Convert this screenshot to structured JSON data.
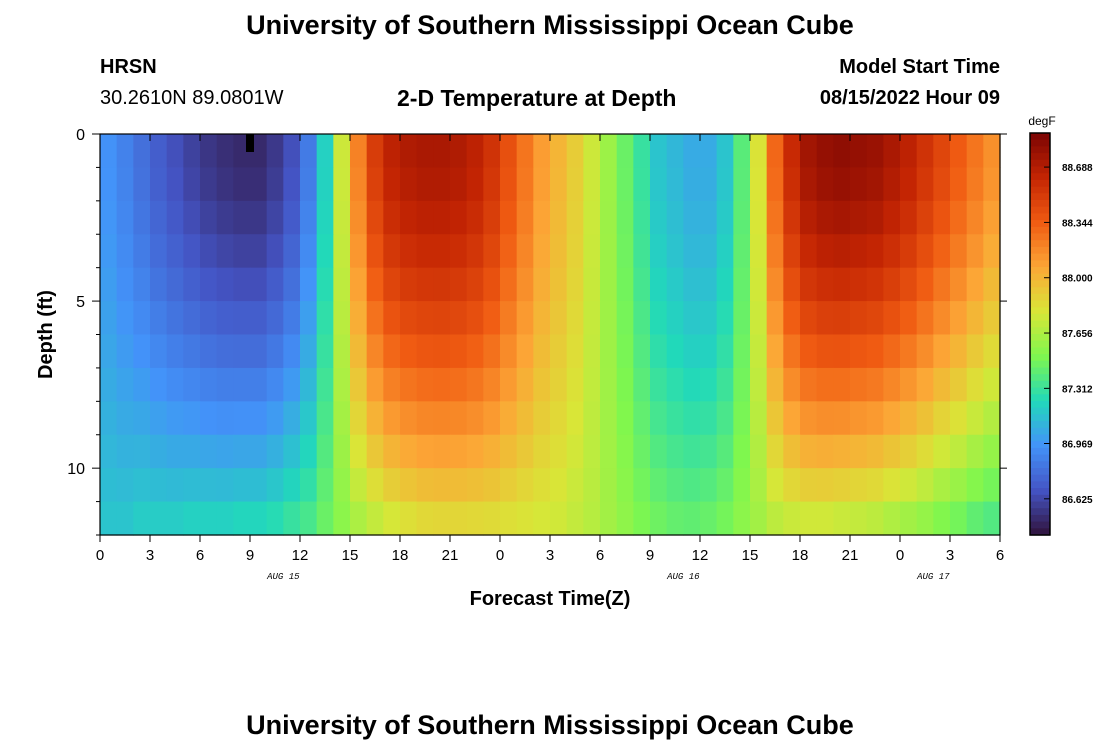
{
  "header": {
    "title": "University of Southern Mississippi Ocean Cube",
    "station": "HRSN",
    "coords": "30.2610N  89.0801W",
    "plot_title": "2-D Temperature at Depth",
    "model_label": "Model Start Time",
    "model_time": "08/15/2022 Hour 09",
    "footer_title": "University of Southern Mississippi Ocean Cube"
  },
  "chart_data": {
    "type": "heatmap",
    "title": "2-D Temperature at Depth",
    "xlabel": "Forecast Time(Z)",
    "ylabel": "Depth (ft)",
    "x_ticks": [
      "0",
      "3",
      "6",
      "9",
      "12",
      "15",
      "18",
      "21",
      "0",
      "3",
      "6",
      "9",
      "12",
      "15",
      "18",
      "21",
      "0",
      "3",
      "6"
    ],
    "date_labels": [
      {
        "hour_index": 11,
        "label": "AUG 15"
      },
      {
        "hour_index": 35,
        "label": "AUG 16"
      },
      {
        "hour_index": 50,
        "label": "AUG 17"
      }
    ],
    "y_ticks": [
      0,
      5,
      10
    ],
    "ylim": [
      12,
      0
    ],
    "hours": 54,
    "colorbar_unit": "degF",
    "colorbar_ticks": [
      "88.688",
      "88.344",
      "88.000",
      "87.656",
      "87.312",
      "86.969",
      "86.625"
    ],
    "colorbar_range": [
      86.4,
      88.9
    ],
    "current_time_marker_hour": 9,
    "depth_levels_ft": [
      0,
      1,
      2,
      3,
      4,
      5,
      6,
      7,
      8,
      9,
      10,
      11
    ],
    "surface_temp_degF": [
      86.95,
      86.88,
      86.8,
      86.72,
      86.66,
      86.6,
      86.55,
      86.52,
      86.5,
      86.5,
      86.56,
      86.66,
      86.85,
      87.2,
      87.75,
      88.2,
      88.5,
      88.65,
      88.7,
      88.72,
      88.72,
      88.7,
      88.65,
      88.55,
      88.4,
      88.25,
      88.1,
      88.0,
      87.9,
      87.75,
      87.6,
      87.45,
      87.3,
      87.15,
      87.1,
      87.05,
      87.05,
      87.15,
      87.4,
      87.8,
      88.3,
      88.6,
      88.75,
      88.8,
      88.82,
      88.8,
      88.78,
      88.72,
      88.65,
      88.55,
      88.45,
      88.35,
      88.25,
      88.15
    ],
    "bottom_temp_degF": [
      87.15,
      87.15,
      87.18,
      87.18,
      87.18,
      87.2,
      87.2,
      87.2,
      87.22,
      87.22,
      87.25,
      87.3,
      87.35,
      87.45,
      87.55,
      87.65,
      87.72,
      87.78,
      87.82,
      87.85,
      87.86,
      87.86,
      87.85,
      87.84,
      87.82,
      87.8,
      87.78,
      87.76,
      87.72,
      87.68,
      87.62,
      87.56,
      87.5,
      87.46,
      87.43,
      87.42,
      87.44,
      87.48,
      87.55,
      87.62,
      87.7,
      87.74,
      87.76,
      87.76,
      87.74,
      87.72,
      87.7,
      87.66,
      87.62,
      87.58,
      87.52,
      87.48,
      87.42,
      87.38
    ]
  }
}
